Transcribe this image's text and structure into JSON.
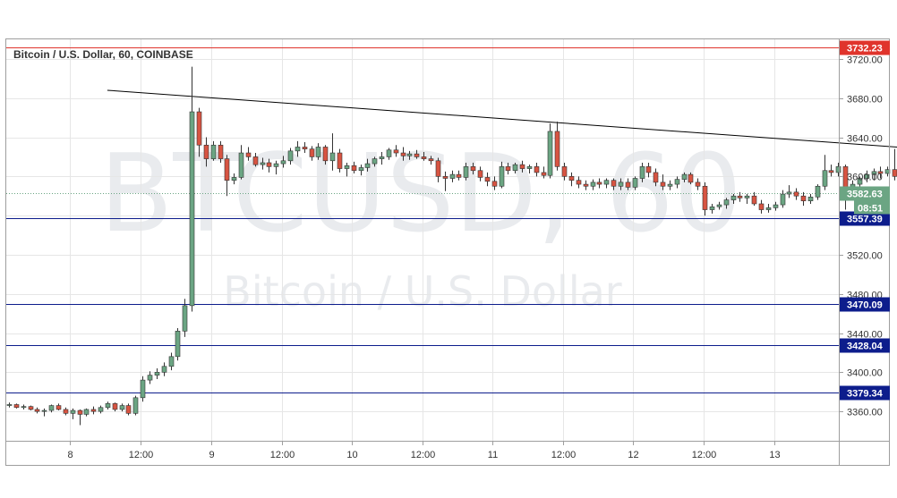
{
  "chart_data": {
    "type": "candlestick",
    "title": "Bitcoin / U.S. Dollar, 60, COINBASE",
    "watermark": {
      "symbol": "BTCUSD, 60",
      "name": "Bitcoin / U.S. Dollar"
    },
    "ylim": [
      3330,
      3740
    ],
    "y_ticks": [
      3360,
      3400,
      3440,
      3480,
      3520,
      3560,
      3600,
      3640,
      3680,
      3720
    ],
    "y_tick_labels": [
      "3360.00",
      "3400.00",
      "3440.00",
      "3480.00",
      "3520.00",
      "3560.00",
      "3600.00",
      "3640.00",
      "3680.00",
      "3720.00"
    ],
    "x_tick_labels": [
      "8",
      "12:00",
      "9",
      "12:00",
      "10",
      "12:00",
      "11",
      "12:00",
      "12",
      "12:00",
      "13"
    ],
    "grid": true,
    "colors": {
      "up": "#6ba583",
      "down": "#d75442",
      "horizontal_line": "#0d1d8c",
      "resistance_line": "#e0342c",
      "trendline": "#000000",
      "last_price": "#6ba583",
      "grid": "#e6e6e6"
    },
    "horizontal_lines": [
      {
        "price": 3732.23,
        "label": "3732.23",
        "color": "#e0342c"
      },
      {
        "price": 3557.39,
        "label": "3557.39",
        "color": "#0d1d8c"
      },
      {
        "price": 3470.09,
        "label": "3470.09",
        "color": "#0d1d8c"
      },
      {
        "price": 3428.04,
        "label": "3428.04",
        "color": "#0d1d8c"
      },
      {
        "price": 3379.34,
        "label": "3379.34",
        "color": "#0d1d8c"
      }
    ],
    "last_price": {
      "price": 3582.63,
      "label": "3582.63",
      "countdown": "08:51"
    },
    "trendline": {
      "start_bar": 14,
      "start_price": 3688,
      "end_bar": 132,
      "end_price": 3627
    },
    "candles": [
      [
        3366,
        3369,
        3364,
        3367
      ],
      [
        3367,
        3368,
        3363,
        3364
      ],
      [
        3364,
        3367,
        3362,
        3365
      ],
      [
        3365,
        3366,
        3361,
        3362
      ],
      [
        3362,
        3364,
        3358,
        3360
      ],
      [
        3360,
        3363,
        3355,
        3361
      ],
      [
        3361,
        3367,
        3359,
        3366
      ],
      [
        3366,
        3368,
        3361,
        3362
      ],
      [
        3362,
        3364,
        3356,
        3358
      ],
      [
        3358,
        3363,
        3352,
        3361
      ],
      [
        3361,
        3362,
        3346,
        3357
      ],
      [
        3357,
        3363,
        3355,
        3362
      ],
      [
        3362,
        3365,
        3357,
        3360
      ],
      [
        3360,
        3366,
        3358,
        3364
      ],
      [
        3364,
        3370,
        3362,
        3368
      ],
      [
        3368,
        3369,
        3360,
        3362
      ],
      [
        3362,
        3368,
        3360,
        3366
      ],
      [
        3366,
        3368,
        3356,
        3358
      ],
      [
        3358,
        3376,
        3356,
        3374
      ],
      [
        3374,
        3396,
        3370,
        3392
      ],
      [
        3392,
        3401,
        3388,
        3397
      ],
      [
        3397,
        3404,
        3393,
        3400
      ],
      [
        3400,
        3410,
        3396,
        3406
      ],
      [
        3406,
        3420,
        3402,
        3416
      ],
      [
        3416,
        3445,
        3412,
        3442
      ],
      [
        3442,
        3475,
        3436,
        3468
      ],
      [
        3468,
        3712,
        3462,
        3666
      ],
      [
        3666,
        3670,
        3620,
        3632
      ],
      [
        3632,
        3640,
        3610,
        3618
      ],
      [
        3618,
        3636,
        3616,
        3632
      ],
      [
        3632,
        3636,
        3614,
        3618
      ],
      [
        3618,
        3622,
        3580,
        3596
      ],
      [
        3596,
        3603,
        3592,
        3599
      ],
      [
        3599,
        3632,
        3597,
        3624
      ],
      [
        3624,
        3630,
        3616,
        3620
      ],
      [
        3620,
        3624,
        3610,
        3612
      ],
      [
        3612,
        3619,
        3607,
        3614
      ],
      [
        3614,
        3618,
        3604,
        3610
      ],
      [
        3610,
        3616,
        3602,
        3613
      ],
      [
        3613,
        3621,
        3609,
        3616
      ],
      [
        3616,
        3629,
        3612,
        3626
      ],
      [
        3626,
        3636,
        3620,
        3630
      ],
      [
        3630,
        3635,
        3624,
        3628
      ],
      [
        3628,
        3631,
        3616,
        3620
      ],
      [
        3620,
        3634,
        3617,
        3630
      ],
      [
        3630,
        3632,
        3612,
        3616
      ],
      [
        3616,
        3644,
        3606,
        3624
      ],
      [
        3624,
        3628,
        3604,
        3608
      ],
      [
        3608,
        3614,
        3600,
        3611
      ],
      [
        3611,
        3615,
        3603,
        3606
      ],
      [
        3606,
        3612,
        3601,
        3609
      ],
      [
        3609,
        3618,
        3605,
        3613
      ],
      [
        3613,
        3620,
        3610,
        3618
      ],
      [
        3618,
        3625,
        3612,
        3620
      ],
      [
        3620,
        3629,
        3617,
        3627
      ],
      [
        3627,
        3632,
        3620,
        3624
      ],
      [
        3624,
        3630,
        3616,
        3621
      ],
      [
        3621,
        3626,
        3617,
        3623
      ],
      [
        3623,
        3627,
        3618,
        3620
      ],
      [
        3620,
        3625,
        3616,
        3618
      ],
      [
        3618,
        3621,
        3612,
        3616
      ],
      [
        3616,
        3619,
        3594,
        3600
      ],
      [
        3600,
        3605,
        3585,
        3598
      ],
      [
        3598,
        3606,
        3594,
        3602
      ],
      [
        3602,
        3606,
        3596,
        3599
      ],
      [
        3599,
        3614,
        3596,
        3610
      ],
      [
        3610,
        3614,
        3602,
        3606
      ],
      [
        3606,
        3610,
        3595,
        3599
      ],
      [
        3599,
        3604,
        3590,
        3595
      ],
      [
        3595,
        3600,
        3586,
        3590
      ],
      [
        3590,
        3615,
        3588,
        3610
      ],
      [
        3610,
        3614,
        3602,
        3606
      ],
      [
        3606,
        3614,
        3603,
        3612
      ],
      [
        3612,
        3616,
        3604,
        3608
      ],
      [
        3608,
        3612,
        3603,
        3610
      ],
      [
        3610,
        3614,
        3600,
        3604
      ],
      [
        3604,
        3610,
        3598,
        3601
      ],
      [
        3601,
        3654,
        3598,
        3646
      ],
      [
        3646,
        3656,
        3606,
        3610
      ],
      [
        3610,
        3614,
        3596,
        3600
      ],
      [
        3600,
        3604,
        3590,
        3596
      ],
      [
        3596,
        3600,
        3588,
        3592
      ],
      [
        3592,
        3596,
        3586,
        3590
      ],
      [
        3590,
        3597,
        3586,
        3594
      ],
      [
        3594,
        3598,
        3588,
        3592
      ],
      [
        3592,
        3598,
        3588,
        3596
      ],
      [
        3596,
        3598,
        3586,
        3590
      ],
      [
        3590,
        3598,
        3586,
        3594
      ],
      [
        3594,
        3598,
        3586,
        3589
      ],
      [
        3589,
        3600,
        3586,
        3598
      ],
      [
        3598,
        3614,
        3594,
        3610
      ],
      [
        3610,
        3614,
        3599,
        3604
      ],
      [
        3604,
        3608,
        3590,
        3594
      ],
      [
        3594,
        3602,
        3586,
        3590
      ],
      [
        3590,
        3596,
        3586,
        3592
      ],
      [
        3592,
        3600,
        3588,
        3597
      ],
      [
        3597,
        3604,
        3594,
        3602
      ],
      [
        3602,
        3604,
        3592,
        3594
      ],
      [
        3594,
        3598,
        3586,
        3590
      ],
      [
        3590,
        3594,
        3560,
        3566
      ],
      [
        3566,
        3572,
        3562,
        3569
      ],
      [
        3569,
        3574,
        3566,
        3571
      ],
      [
        3571,
        3578,
        3567,
        3576
      ],
      [
        3576,
        3582,
        3572,
        3580
      ],
      [
        3580,
        3584,
        3574,
        3578
      ],
      [
        3578,
        3582,
        3572,
        3580
      ],
      [
        3580,
        3584,
        3570,
        3572
      ],
      [
        3572,
        3576,
        3562,
        3566
      ],
      [
        3566,
        3572,
        3563,
        3568
      ],
      [
        3568,
        3574,
        3565,
        3571
      ],
      [
        3571,
        3586,
        3568,
        3582
      ],
      [
        3582,
        3591,
        3578,
        3584
      ],
      [
        3584,
        3588,
        3576,
        3580
      ],
      [
        3580,
        3584,
        3570,
        3575
      ],
      [
        3575,
        3582,
        3572,
        3579
      ],
      [
        3579,
        3592,
        3576,
        3590
      ],
      [
        3590,
        3622,
        3586,
        3606
      ],
      [
        3606,
        3612,
        3600,
        3604
      ],
      [
        3604,
        3614,
        3600,
        3610
      ],
      [
        3610,
        3612,
        3566,
        3582
      ],
      [
        3582,
        3596,
        3578,
        3592
      ],
      [
        3592,
        3600,
        3588,
        3598
      ],
      [
        3598,
        3606,
        3594,
        3602
      ],
      [
        3602,
        3608,
        3596,
        3605
      ],
      [
        3605,
        3610,
        3598,
        3603
      ],
      [
        3603,
        3610,
        3600,
        3607
      ],
      [
        3607,
        3628,
        3596,
        3600
      ],
      [
        3600,
        3604,
        3586,
        3590
      ],
      [
        3590,
        3594,
        3580,
        3583
      ]
    ]
  }
}
